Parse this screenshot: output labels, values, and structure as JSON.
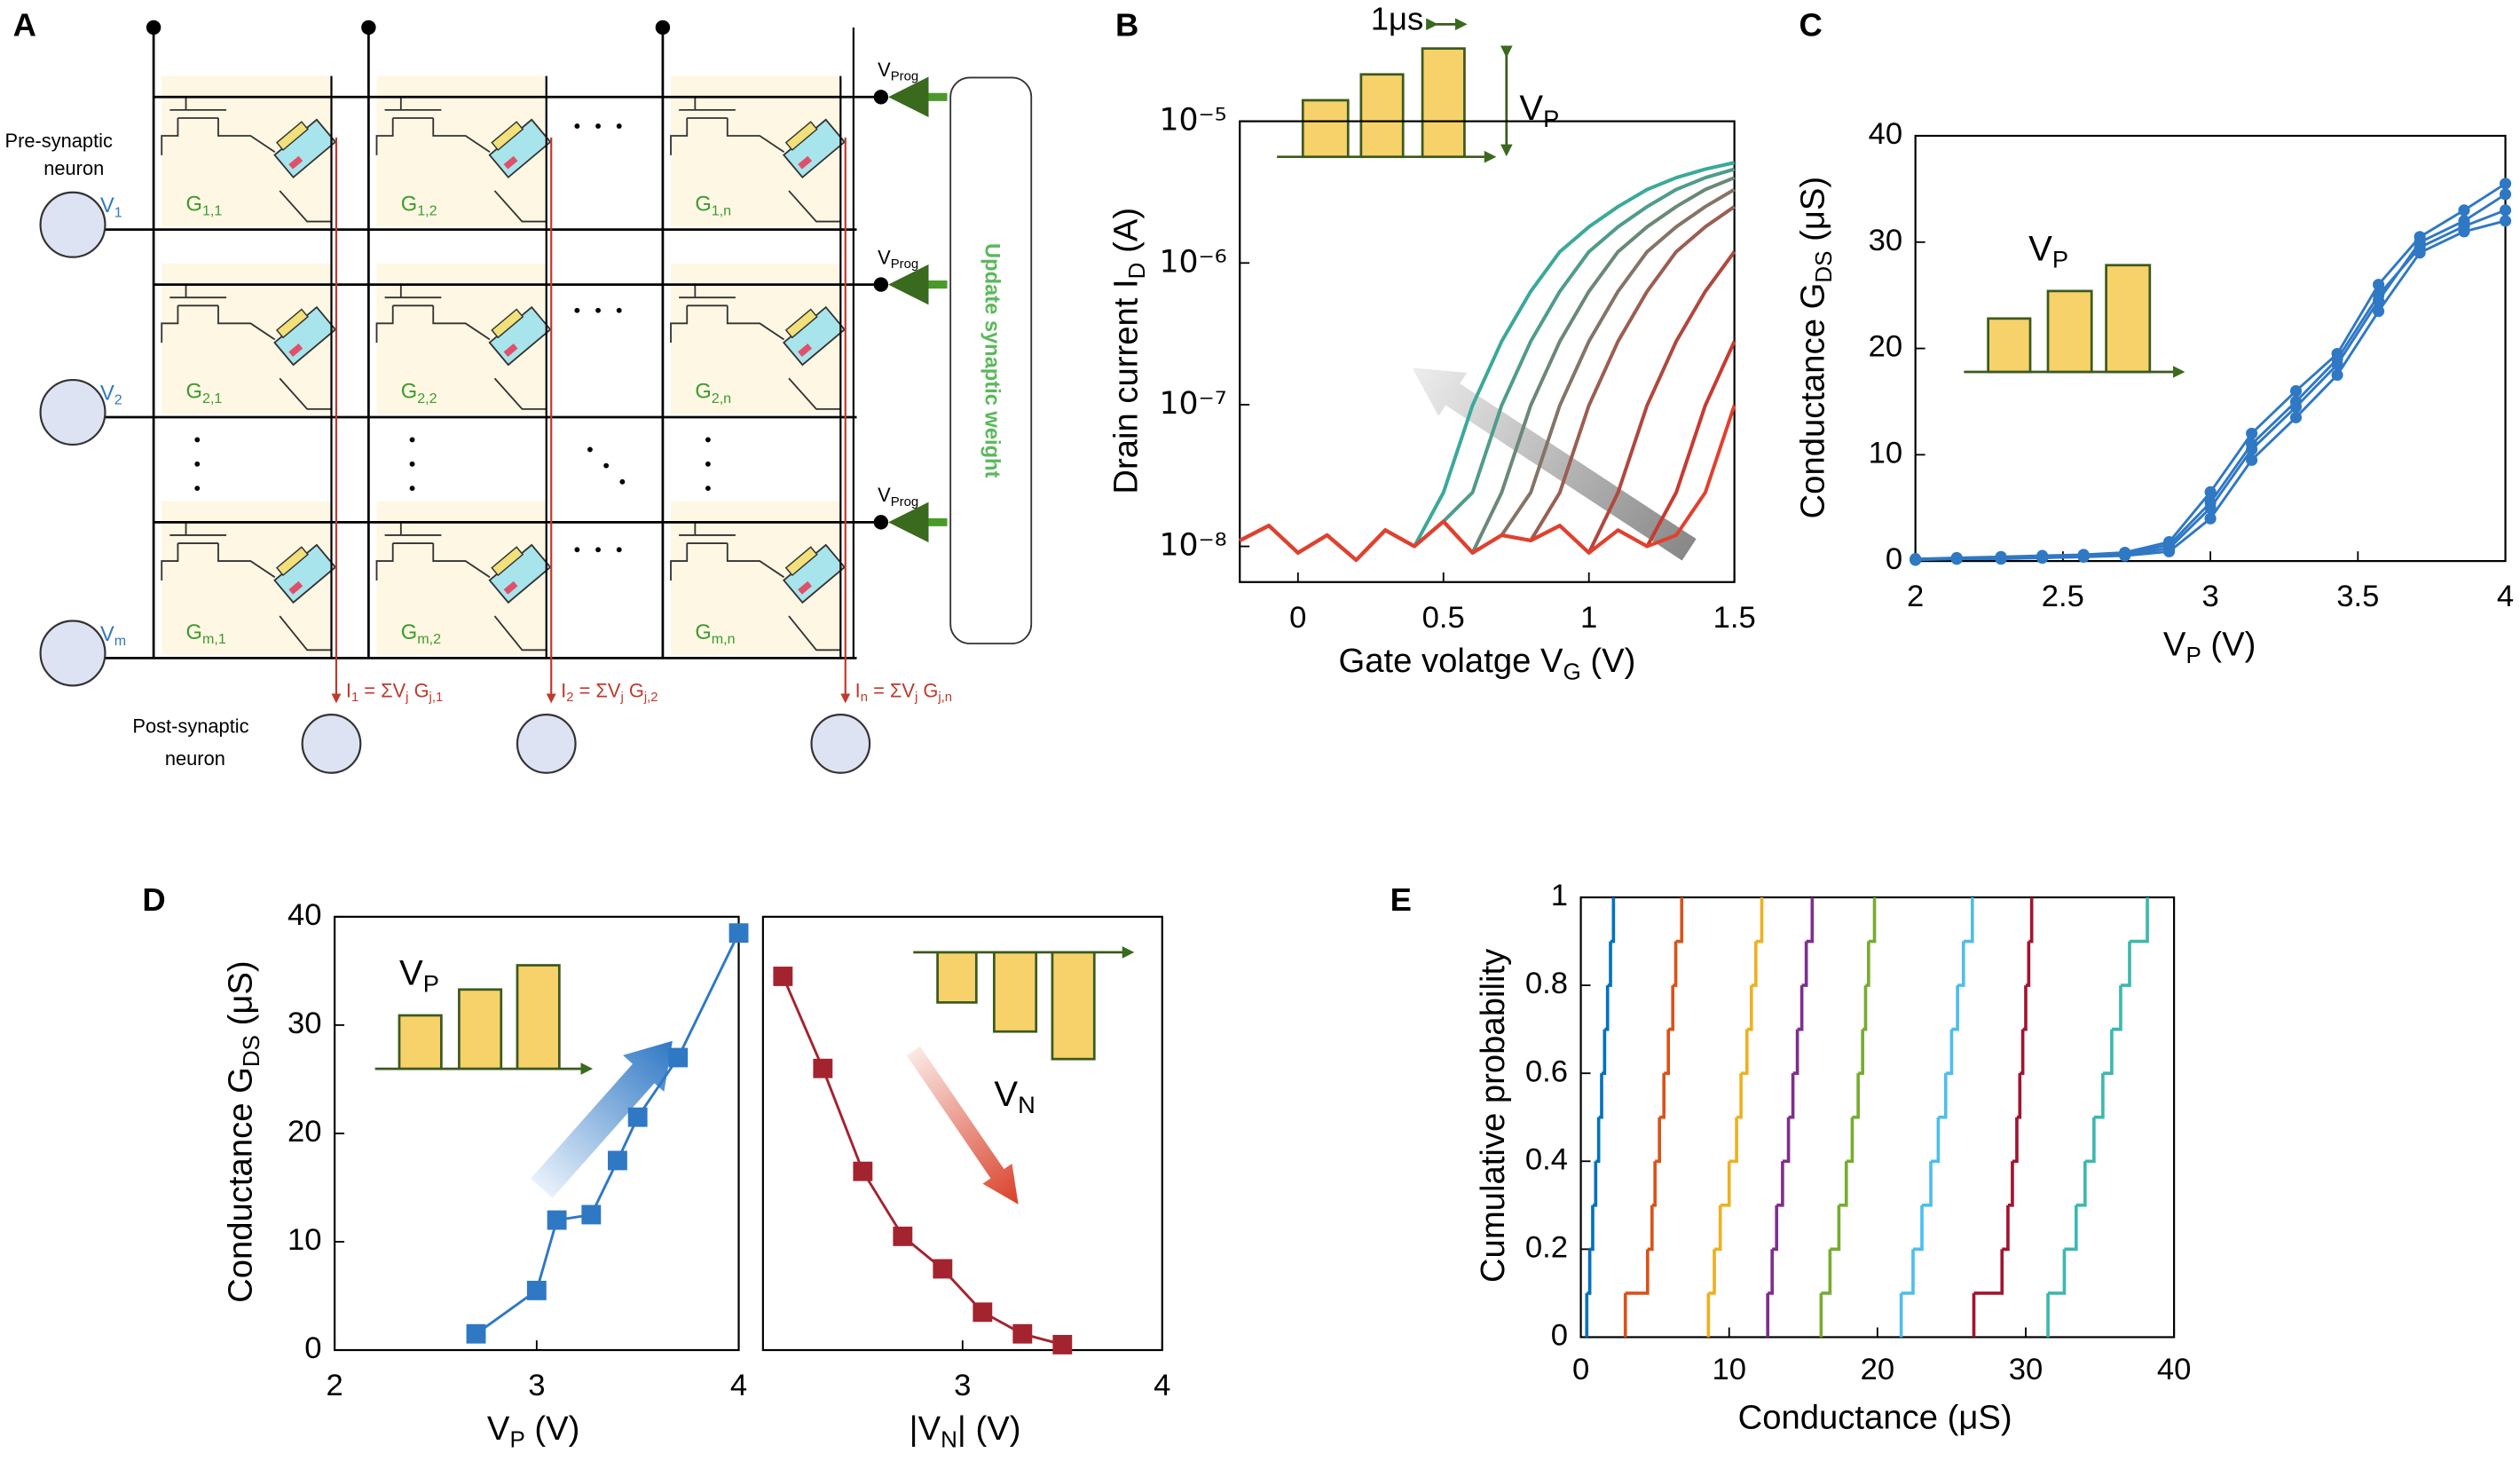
{
  "diagram": {
    "label": "A",
    "pre_synaptic": [
      "Pre-synaptic",
      "neuron"
    ],
    "post_synaptic": [
      "Post-synaptic",
      "neuron"
    ],
    "inputs": [
      [
        "V",
        "1"
      ],
      [
        "V",
        "2"
      ],
      [
        "V",
        "m"
      ]
    ],
    "cells": [
      [
        [
          "G",
          "1,1"
        ],
        [
          "G",
          "1,2"
        ],
        [
          "G",
          "1,n"
        ]
      ],
      [
        [
          "G",
          "2,1"
        ],
        [
          "G",
          "2,2"
        ],
        [
          "G",
          "2,n"
        ]
      ],
      [
        [
          "G",
          "m,1"
        ],
        [
          "G",
          "m,2"
        ],
        [
          "G",
          "m,n"
        ]
      ]
    ],
    "prog": [
      [
        "V",
        "Prog"
      ],
      [
        "V",
        "Prog"
      ],
      [
        "V",
        "Prog"
      ]
    ],
    "update": "Update synaptic weight",
    "outputs": [
      [
        "I",
        "1",
        " = ΣV",
        "j",
        " G",
        "j,1"
      ],
      [
        "I",
        "2",
        " = ΣV",
        "j",
        " G",
        "j,2"
      ],
      [
        "I",
        "n",
        " = ΣV",
        "j",
        " G",
        "j,n"
      ]
    ]
  },
  "chart_data": [
    {
      "type": "line",
      "label": "B",
      "ylog": true,
      "xlabel": [
        "Gate volatge V",
        "G",
        " (V)"
      ],
      "ylabel": [
        "Drain current I",
        "D",
        " (A)"
      ],
      "inset": {
        "pulse_width": "1μs",
        "amplitude": [
          "V",
          "P"
        ]
      },
      "x": [
        -0.2,
        -0.1,
        0,
        0.1,
        0.2,
        0.3,
        0.4,
        0.5,
        0.6,
        0.7,
        0.8,
        0.9,
        1,
        1.1,
        1.2,
        1.3,
        1.4,
        1.5
      ],
      "xlim": [
        -0.2,
        1.5
      ],
      "ylim": [
        5.6e-09,
        1e-05
      ],
      "xticks": [
        0,
        0.5,
        1,
        1.5
      ],
      "yticks": [
        {
          "value": 1e-08,
          "label": "10⁻⁸"
        },
        {
          "value": 1e-07,
          "label": "10⁻⁷"
        },
        {
          "value": 1e-06,
          "label": "10⁻⁶"
        },
        {
          "value": 1e-05,
          "label": "10⁻⁵"
        }
      ],
      "series": [
        {
          "color": "#3aa99a",
          "values": [
            1.1e-08,
            1.4e-08,
            9e-09,
            1.2e-08,
            8e-09,
            1.3e-08,
            1e-08,
            2.4e-08,
            9.9e-08,
            2.8e-07,
            6.3e-07,
            1.2e-06,
            1.8e-06,
            2.5e-06,
            3.3e-06,
            4e-06,
            4.6e-06,
            5.1e-06
          ]
        },
        {
          "color": "#4f9c8c",
          "values": [
            1.1e-08,
            1.4e-08,
            9e-09,
            1.2e-08,
            8e-09,
            1.3e-08,
            1e-08,
            1.5e-08,
            2.4e-08,
            9.9e-08,
            2.8e-07,
            6.3e-07,
            1.2e-06,
            1.8e-06,
            2.5e-06,
            3.3e-06,
            4e-06,
            4.6e-06
          ]
        },
        {
          "color": "#6a8878",
          "values": [
            1.1e-08,
            1.4e-08,
            9e-09,
            1.2e-08,
            8e-09,
            1.3e-08,
            1e-08,
            1.5e-08,
            9e-09,
            2.4e-08,
            9.9e-08,
            2.8e-07,
            6.3e-07,
            1.2e-06,
            1.8e-06,
            2.5e-06,
            3.3e-06,
            4e-06
          ]
        },
        {
          "color": "#857466",
          "values": [
            1.1e-08,
            1.4e-08,
            9e-09,
            1.2e-08,
            8e-09,
            1.3e-08,
            1e-08,
            1.5e-08,
            9e-09,
            1.2e-08,
            2.4e-08,
            9.9e-08,
            2.8e-07,
            6.3e-07,
            1.2e-06,
            1.8e-06,
            2.5e-06,
            3.3e-06
          ]
        },
        {
          "color": "#9a5e52",
          "values": [
            1.1e-08,
            1.4e-08,
            9e-09,
            1.2e-08,
            8e-09,
            1.3e-08,
            1e-08,
            1.5e-08,
            9e-09,
            1.2e-08,
            1.1e-08,
            2.4e-08,
            9.9e-08,
            2.8e-07,
            6.3e-07,
            1.2e-06,
            1.8e-06,
            2.5e-06
          ]
        },
        {
          "color": "#b0483e",
          "values": [
            1.1e-08,
            1.4e-08,
            9e-09,
            1.2e-08,
            8e-09,
            1.3e-08,
            1e-08,
            1.5e-08,
            9e-09,
            1.2e-08,
            1.1e-08,
            1.4e-08,
            9e-09,
            2.4e-08,
            9.9e-08,
            2.8e-07,
            6.3e-07,
            1.2e-06
          ]
        },
        {
          "color": "#c83a30",
          "values": [
            1.1e-08,
            1.4e-08,
            9e-09,
            1.2e-08,
            8e-09,
            1.3e-08,
            1e-08,
            1.5e-08,
            9e-09,
            1.2e-08,
            1.1e-08,
            1.4e-08,
            9e-09,
            1.3e-08,
            1e-08,
            2.4e-08,
            9.9e-08,
            2.8e-07
          ]
        },
        {
          "color": "#e2402e",
          "values": [
            1.1e-08,
            1.4e-08,
            9e-09,
            1.2e-08,
            8e-09,
            1.3e-08,
            1e-08,
            1.5e-08,
            9e-09,
            1.2e-08,
            1.1e-08,
            1.4e-08,
            9e-09,
            1.3e-08,
            1e-08,
            1.2e-08,
            2.4e-08,
            9.9e-08
          ]
        }
      ]
    },
    {
      "type": "line",
      "label": "C",
      "marker": "circle",
      "xlabel": [
        "V",
        "P",
        " (V)"
      ],
      "ylabel": [
        "Conductance G",
        "DS",
        " (μS)"
      ],
      "inset": {
        "amplitude": [
          "V",
          "P"
        ]
      },
      "x": [
        2,
        2.14,
        2.29,
        2.43,
        2.57,
        2.71,
        2.86,
        3,
        3.14,
        3.29,
        3.43,
        3.57,
        3.71,
        3.86,
        4
      ],
      "xlim": [
        2,
        4
      ],
      "ylim": [
        0,
        40
      ],
      "xticks": [
        2,
        2.5,
        3,
        3.5,
        4
      ],
      "yticks": [
        0,
        10,
        20,
        30,
        40
      ],
      "series": [
        {
          "color": "#2f78c4",
          "values": [
            0.2,
            0.3,
            0.3,
            0.4,
            0.5,
            0.7,
            1.5,
            5.5,
            11,
            15,
            19,
            25,
            29.5,
            31.5,
            33
          ]
        },
        {
          "color": "#2f78c4",
          "values": [
            0.1,
            0.2,
            0.3,
            0.3,
            0.4,
            0.6,
            1.2,
            5,
            10.5,
            14.5,
            18.5,
            24.5,
            30,
            32,
            34.5
          ]
        },
        {
          "color": "#2f78c4",
          "values": [
            0.2,
            0.2,
            0.2,
            0.3,
            0.4,
            0.5,
            0.9,
            4,
            9.5,
            13.5,
            17.5,
            23.5,
            29,
            31,
            32
          ]
        },
        {
          "color": "#2f78c4",
          "values": [
            0.1,
            0.3,
            0.4,
            0.5,
            0.6,
            0.8,
            1.8,
            6.5,
            12,
            16,
            19.5,
            26,
            30.5,
            33,
            35.5
          ]
        }
      ]
    },
    {
      "type": "line",
      "label": "D",
      "marker": "square",
      "xlabel": [
        "V",
        "P",
        " (V)"
      ],
      "ylabel": [
        "Conductance G",
        "DS",
        " (μS)"
      ],
      "inset": {
        "amplitude": [
          "V",
          "P"
        ]
      },
      "x": [
        2.7,
        3,
        3.1,
        3.27,
        3.4,
        3.5,
        3.7,
        4
      ],
      "xlim": [
        2,
        4
      ],
      "ylim": [
        0,
        40
      ],
      "xticks": [
        2,
        3,
        4
      ],
      "yticks": [
        0,
        10,
        20,
        30,
        40
      ],
      "series": [
        {
          "color": "#2f78c4",
          "values": [
            1.5,
            5.5,
            12,
            12.5,
            17.5,
            21.5,
            27,
            38.5
          ]
        }
      ]
    },
    {
      "type": "line",
      "marker": "square",
      "xlabel": [
        "|V",
        "N",
        "| (V)"
      ],
      "inset": {
        "amplitude": [
          "V",
          "N"
        ]
      },
      "x": [
        2.1,
        2.3,
        2.5,
        2.7,
        2.9,
        3.1,
        3.3,
        3.5
      ],
      "xlim": [
        2,
        4
      ],
      "ylim": [
        0,
        40
      ],
      "xticks": [
        3,
        4
      ],
      "series": [
        {
          "color": "#a3232f",
          "values": [
            34.5,
            26,
            16.5,
            10.5,
            7.5,
            3.5,
            1.5,
            0.5
          ]
        }
      ]
    },
    {
      "type": "step",
      "label": "E",
      "xlabel": "Conductance (μS)",
      "ylabel": "Cumulative probability",
      "xlim": [
        0,
        40
      ],
      "ylim": [
        0,
        1
      ],
      "xticks": [
        0,
        10,
        20,
        30,
        40
      ],
      "yticks": [
        0,
        0.2,
        0.4,
        0.6,
        0.8,
        1
      ],
      "series": [
        {
          "color": "#0072bd",
          "x": [
            0.4,
            0.6,
            0.8,
            1,
            1.2,
            1.4,
            1.6,
            1.8,
            2,
            2.2
          ],
          "values": [
            0.1,
            0.2,
            0.3,
            0.4,
            0.5,
            0.6,
            0.7,
            0.8,
            0.9,
            1
          ]
        },
        {
          "color": "#d95319",
          "x": [
            3,
            4.5,
            4.8,
            5,
            5.3,
            5.6,
            5.9,
            6.2,
            6.4,
            6.8
          ],
          "values": [
            0.1,
            0.2,
            0.3,
            0.4,
            0.5,
            0.6,
            0.7,
            0.8,
            0.9,
            1
          ]
        },
        {
          "color": "#edb120",
          "x": [
            8.6,
            9,
            9.4,
            10,
            10.5,
            10.8,
            11.2,
            11.5,
            11.8,
            12.2
          ],
          "values": [
            0.1,
            0.2,
            0.3,
            0.4,
            0.5,
            0.6,
            0.7,
            0.8,
            0.9,
            1
          ]
        },
        {
          "color": "#7e2f8e",
          "x": [
            12.6,
            12.9,
            13.2,
            13.6,
            14,
            14.3,
            14.6,
            14.9,
            15.2,
            15.6
          ],
          "values": [
            0.1,
            0.2,
            0.3,
            0.4,
            0.5,
            0.6,
            0.7,
            0.8,
            0.9,
            1
          ]
        },
        {
          "color": "#77ac30",
          "x": [
            16.2,
            16.8,
            17.4,
            17.9,
            18.3,
            18.7,
            19,
            19.2,
            19.4,
            19.8
          ],
          "values": [
            0.1,
            0.2,
            0.3,
            0.4,
            0.5,
            0.6,
            0.7,
            0.8,
            0.9,
            1
          ]
        },
        {
          "color": "#4dbeee",
          "x": [
            21.6,
            22.4,
            23,
            23.6,
            24.1,
            24.6,
            25,
            25.4,
            25.8,
            26.4
          ],
          "values": [
            0.1,
            0.2,
            0.3,
            0.4,
            0.5,
            0.6,
            0.7,
            0.8,
            0.9,
            1
          ]
        },
        {
          "color": "#a2142f",
          "x": [
            26.5,
            28.4,
            28.8,
            29.1,
            29.4,
            29.6,
            29.8,
            30,
            30.2,
            30.4
          ],
          "values": [
            0.1,
            0.2,
            0.3,
            0.4,
            0.5,
            0.6,
            0.7,
            0.8,
            0.9,
            1
          ]
        },
        {
          "color": "#3cb8b0",
          "x": [
            31.5,
            32.6,
            33.4,
            34,
            34.6,
            35.2,
            35.8,
            36.4,
            37,
            38.2
          ],
          "values": [
            0.1,
            0.2,
            0.3,
            0.4,
            0.5,
            0.6,
            0.7,
            0.8,
            0.9,
            1
          ]
        }
      ]
    }
  ]
}
